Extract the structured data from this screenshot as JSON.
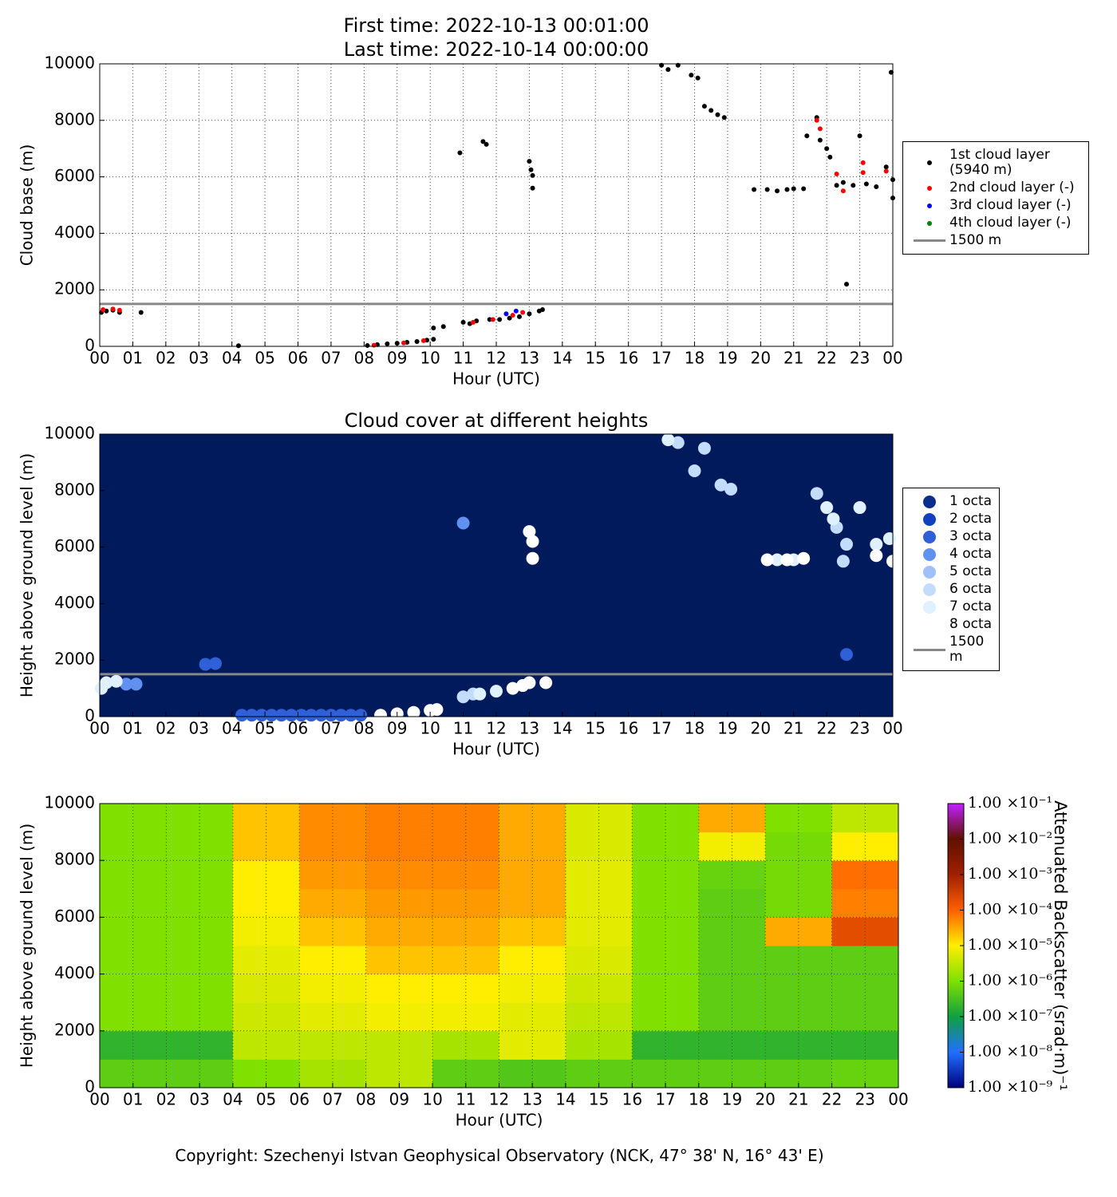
{
  "chart_data": [
    {
      "type": "scatter",
      "title": "First time: 2022-10-13 00:01:00",
      "subtitle": "Last time: 2022-10-14 00:00:00",
      "x_label": "Hour (UTC)",
      "y_label": "Cloud base (m)",
      "grid": true,
      "legend": "right",
      "xlim": [
        0,
        24
      ],
      "ylim": [
        0,
        10000
      ],
      "xticks": [
        {
          "value": 0,
          "label": "00"
        },
        {
          "value": 1,
          "label": "01"
        },
        {
          "value": 2,
          "label": "02"
        },
        {
          "value": 3,
          "label": "03"
        },
        {
          "value": 4,
          "label": "04"
        },
        {
          "value": 5,
          "label": "05"
        },
        {
          "value": 6,
          "label": "06"
        },
        {
          "value": 7,
          "label": "07"
        },
        {
          "value": 8,
          "label": "08"
        },
        {
          "value": 9,
          "label": "09"
        },
        {
          "value": 10,
          "label": "10"
        },
        {
          "value": 11,
          "label": "11"
        },
        {
          "value": 12,
          "label": "12"
        },
        {
          "value": 13,
          "label": "13"
        },
        {
          "value": 14,
          "label": "14"
        },
        {
          "value": 15,
          "label": "15"
        },
        {
          "value": 16,
          "label": "16"
        },
        {
          "value": 17,
          "label": "17"
        },
        {
          "value": 18,
          "label": "18"
        },
        {
          "value": 19,
          "label": "19"
        },
        {
          "value": 20,
          "label": "20"
        },
        {
          "value": 21,
          "label": "21"
        },
        {
          "value": 22,
          "label": "22"
        },
        {
          "value": 23,
          "label": "23"
        },
        {
          "value": 24,
          "label": "00"
        }
      ],
      "yticks": [
        0,
        2000,
        4000,
        6000,
        8000,
        10000
      ],
      "series": [
        {
          "name": "1st cloud layer\n(5940 m)",
          "color": "#000000",
          "x": [
            0.05,
            0.2,
            0.4,
            0.6,
            1.25,
            4.2,
            8.1,
            8.4,
            8.7,
            9.0,
            9.3,
            9.6,
            9.9,
            10.1,
            10.1,
            10.4,
            10.9,
            11.0,
            11.2,
            11.4,
            11.6,
            11.7,
            11.8,
            12.1,
            12.4,
            12.7,
            13.0,
            13.0,
            13.05,
            13.1,
            13.1,
            13.3,
            13.4,
            17.0,
            17.2,
            17.5,
            17.9,
            18.1,
            18.3,
            18.5,
            18.7,
            18.9,
            19.8,
            20.2,
            20.5,
            20.8,
            21.0,
            21.3,
            21.4,
            21.7,
            21.8,
            22.0,
            22.1,
            22.3,
            22.5,
            22.6,
            22.8,
            23.0,
            23.2,
            23.5,
            23.8,
            24.0,
            23.95,
            24.0
          ],
          "values": [
            1200,
            1250,
            1280,
            1200,
            1200,
            20,
            30,
            60,
            90,
            110,
            140,
            170,
            220,
            250,
            650,
            700,
            6850,
            850,
            800,
            900,
            7250,
            7150,
            950,
            950,
            1000,
            1050,
            1150,
            6550,
            6250,
            6050,
            5600,
            1250,
            1300,
            9950,
            9800,
            9950,
            9600,
            9500,
            8500,
            8350,
            8200,
            8100,
            5550,
            5550,
            5500,
            5550,
            5580,
            5580,
            7450,
            8100,
            7300,
            7000,
            6700,
            5700,
            5800,
            2200,
            5700,
            7450,
            5750,
            5650,
            6350,
            5900,
            9700,
            5250
          ]
        },
        {
          "name": "2nd cloud layer (-)",
          "color": "#ff0000",
          "x": [
            0.1,
            0.4,
            0.6,
            8.3,
            9.2,
            9.8,
            11.3,
            11.9,
            12.5,
            12.8,
            21.7,
            21.8,
            22.3,
            22.5,
            23.1,
            23.1,
            23.8
          ],
          "values": [
            1300,
            1320,
            1280,
            40,
            120,
            200,
            850,
            950,
            1100,
            1200,
            8000,
            7700,
            6100,
            5500,
            6500,
            6150,
            6200
          ]
        },
        {
          "name": "3rd cloud layer (-)",
          "color": "#0000ff",
          "x": [
            12.3,
            12.6
          ],
          "values": [
            1150,
            1250
          ]
        },
        {
          "name": "4th cloud layer (-)",
          "color": "#008000",
          "x": [],
          "values": []
        }
      ],
      "reference_line": {
        "name": "1500 m",
        "value": 1500,
        "color": "#888888"
      }
    },
    {
      "type": "scatter",
      "title": "Cloud cover at different heights",
      "x_label": "Hour (UTC)",
      "y_label": "Height above ground level (m)",
      "grid": false,
      "legend": "right",
      "background": "#001a5c",
      "xlim": [
        0,
        24
      ],
      "ylim": [
        0,
        10000
      ],
      "xticks": [
        {
          "value": 0,
          "label": "00"
        },
        {
          "value": 1,
          "label": "01"
        },
        {
          "value": 2,
          "label": "02"
        },
        {
          "value": 3,
          "label": "03"
        },
        {
          "value": 4,
          "label": "04"
        },
        {
          "value": 5,
          "label": "05"
        },
        {
          "value": 6,
          "label": "06"
        },
        {
          "value": 7,
          "label": "07"
        },
        {
          "value": 8,
          "label": "08"
        },
        {
          "value": 9,
          "label": "09"
        },
        {
          "value": 10,
          "label": "10"
        },
        {
          "value": 11,
          "label": "11"
        },
        {
          "value": 12,
          "label": "12"
        },
        {
          "value": 13,
          "label": "13"
        },
        {
          "value": 14,
          "label": "14"
        },
        {
          "value": 15,
          "label": "15"
        },
        {
          "value": 16,
          "label": "16"
        },
        {
          "value": 17,
          "label": "17"
        },
        {
          "value": 18,
          "label": "18"
        },
        {
          "value": 19,
          "label": "19"
        },
        {
          "value": 20,
          "label": "20"
        },
        {
          "value": 21,
          "label": "21"
        },
        {
          "value": 22,
          "label": "22"
        },
        {
          "value": 23,
          "label": "23"
        },
        {
          "value": 24,
          "label": "00"
        }
      ],
      "yticks": [
        0,
        2000,
        4000,
        6000,
        8000,
        10000
      ],
      "series": [
        {
          "name": "1 octa",
          "color": "#0a2e8a",
          "x": [],
          "values": []
        },
        {
          "name": "2 octa",
          "color": "#1040c0",
          "x": [],
          "values": []
        },
        {
          "name": "3 octa",
          "color": "#3060d8",
          "x": [
            3.2,
            3.5,
            4.3,
            4.6,
            4.9,
            5.2,
            5.5,
            5.8,
            6.1,
            6.4,
            6.7,
            7.0,
            7.3,
            7.6,
            7.9,
            22.6
          ],
          "values": [
            1850,
            1880,
            50,
            50,
            50,
            50,
            50,
            50,
            50,
            50,
            50,
            50,
            50,
            50,
            50,
            2200
          ]
        },
        {
          "name": "4 octa",
          "color": "#6090f0",
          "x": [
            11.0,
            1.1,
            0.8
          ],
          "values": [
            6850,
            1150,
            1150
          ]
        },
        {
          "name": "5 octa",
          "color": "#a0c0fa",
          "x": [],
          "values": []
        },
        {
          "name": "6 octa",
          "color": "#c4dcfc",
          "x": [
            17.5,
            18.0,
            18.3,
            18.8,
            19.1,
            21.7,
            22.3,
            22.6,
            22.5,
            11.0,
            11.3
          ],
          "values": [
            9700,
            8700,
            9500,
            8200,
            8050,
            7900,
            6700,
            6100,
            5500,
            700,
            800
          ]
        },
        {
          "name": "7 octa",
          "color": "#dff0ff",
          "x": [
            0.05,
            0.2,
            0.5,
            11.5,
            12.0,
            17.2,
            20.5,
            21.0,
            23.0,
            23.5,
            23.9,
            22.0,
            22.2
          ],
          "values": [
            1000,
            1200,
            1250,
            800,
            900,
            9800,
            5550,
            5550,
            7400,
            6100,
            6300,
            7400,
            7000
          ]
        },
        {
          "name": "8 octa",
          "color": "#ffffff",
          "x": [
            13.0,
            13.1,
            13.1,
            8.5,
            9.0,
            9.5,
            10.0,
            10.2,
            12.5,
            13.0,
            13.5,
            20.2,
            20.8,
            21.3,
            23.5,
            24.0,
            12.8
          ],
          "values": [
            6550,
            6200,
            5600,
            50,
            100,
            150,
            220,
            250,
            1000,
            1200,
            1200,
            5550,
            5550,
            5600,
            5700,
            5500,
            1100
          ]
        }
      ],
      "reference_line": {
        "name": "1500 m",
        "value": 1500,
        "color": "#888888"
      }
    },
    {
      "type": "heatmap",
      "x_label": "Hour (UTC)",
      "y_label": "Height above ground level (m)",
      "grid": true,
      "colorbar_label": "Attenuated Backscatter (srad·m)⁻¹",
      "xlim": [
        0,
        24
      ],
      "ylim": [
        0,
        10000
      ],
      "zlim": [
        1e-09,
        0.1
      ],
      "log_scale": true,
      "xticks": [
        {
          "value": 0,
          "label": "00"
        },
        {
          "value": 1,
          "label": "01"
        },
        {
          "value": 2,
          "label": "02"
        },
        {
          "value": 3,
          "label": "03"
        },
        {
          "value": 4,
          "label": "04"
        },
        {
          "value": 5,
          "label": "05"
        },
        {
          "value": 6,
          "label": "06"
        },
        {
          "value": 7,
          "label": "07"
        },
        {
          "value": 8,
          "label": "08"
        },
        {
          "value": 9,
          "label": "09"
        },
        {
          "value": 10,
          "label": "10"
        },
        {
          "value": 11,
          "label": "11"
        },
        {
          "value": 12,
          "label": "12"
        },
        {
          "value": 13,
          "label": "13"
        },
        {
          "value": 14,
          "label": "14"
        },
        {
          "value": 15,
          "label": "15"
        },
        {
          "value": 16,
          "label": "16"
        },
        {
          "value": 17,
          "label": "17"
        },
        {
          "value": 18,
          "label": "18"
        },
        {
          "value": 19,
          "label": "19"
        },
        {
          "value": 20,
          "label": "20"
        },
        {
          "value": 21,
          "label": "21"
        },
        {
          "value": 22,
          "label": "22"
        },
        {
          "value": 23,
          "label": "23"
        },
        {
          "value": 24,
          "label": "00"
        }
      ],
      "yticks": [
        0,
        2000,
        4000,
        6000,
        8000,
        10000
      ],
      "zticks": [
        {
          "value": 1e-09,
          "label": "1.00 ×10⁻⁹"
        },
        {
          "value": 1e-08,
          "label": "1.00 ×10⁻⁸"
        },
        {
          "value": 1e-07,
          "label": "1.00 ×10⁻⁷"
        },
        {
          "value": 1e-06,
          "label": "1.00 ×10⁻⁶"
        },
        {
          "value": 1e-05,
          "label": "1.00 ×10⁻⁵"
        },
        {
          "value": 0.0001,
          "label": "1.00 ×10⁻⁴"
        },
        {
          "value": 0.001,
          "label": "1.00 ×10⁻³"
        },
        {
          "value": 0.01,
          "label": "1.00 ×10⁻²"
        },
        {
          "value": 0.1,
          "label": "1.00 ×10⁻¹"
        }
      ],
      "colormap": [
        "#00007f",
        "#2070ff",
        "#10a040",
        "#80e000",
        "#ffee00",
        "#ff6000",
        "#a02000",
        "#601000",
        "#c020ff"
      ],
      "x_edges": [
        0,
        2,
        4,
        6,
        8,
        10,
        12,
        14,
        16,
        18,
        20,
        22,
        24
      ],
      "y_edges": [
        0,
        1000,
        2000,
        3000,
        4000,
        5000,
        6000,
        7000,
        8000,
        9000,
        10000
      ],
      "values": [
        [
          5e-07,
          5e-07,
          1e-06,
          2e-06,
          3e-06,
          5e-07,
          4e-07,
          5e-07,
          5e-07,
          5e-07,
          5e-07,
          6e-07
        ],
        [
          2e-07,
          2e-07,
          3e-06,
          3e-06,
          3e-06,
          2e-06,
          6e-06,
          2e-06,
          2e-07,
          2e-07,
          2e-07,
          2e-07
        ],
        [
          1e-06,
          1e-06,
          4e-06,
          6e-06,
          8e-06,
          8e-06,
          6e-06,
          3e-06,
          1e-06,
          5e-07,
          5e-07,
          5e-07
        ],
        [
          1e-06,
          1e-06,
          5e-06,
          8e-06,
          1e-05,
          1e-05,
          8e-06,
          4e-06,
          1e-06,
          5e-07,
          5e-07,
          5e-07
        ],
        [
          1e-06,
          1e-06,
          6e-06,
          1e-05,
          2e-05,
          2e-05,
          1e-05,
          5e-06,
          1e-06,
          5e-07,
          5e-07,
          5e-07
        ],
        [
          1e-06,
          1e-06,
          8e-06,
          2e-05,
          3e-05,
          3e-05,
          2e-05,
          6e-06,
          1e-06,
          5e-07,
          3e-05,
          0.0002
        ],
        [
          1e-06,
          1e-06,
          1e-05,
          3e-05,
          4e-05,
          4e-05,
          3e-05,
          6e-06,
          1e-06,
          5e-07,
          8e-07,
          6e-05
        ],
        [
          1e-06,
          1e-06,
          1e-05,
          4e-05,
          5e-05,
          5e-05,
          3e-05,
          6e-06,
          1e-06,
          6e-07,
          8e-07,
          8e-05
        ],
        [
          1e-06,
          1e-06,
          2e-05,
          5e-05,
          6e-05,
          6e-05,
          3e-05,
          5e-06,
          1e-06,
          8e-06,
          8e-07,
          1e-05
        ],
        [
          1e-06,
          1e-06,
          2e-05,
          5e-05,
          6e-05,
          6e-05,
          3e-05,
          5e-06,
          1e-06,
          3e-05,
          1e-06,
          3e-06
        ]
      ]
    }
  ],
  "footer": "Copyright: Szechenyi Istvan Geophysical Observatory (NCK, 47° 38' N, 16° 43' E)"
}
